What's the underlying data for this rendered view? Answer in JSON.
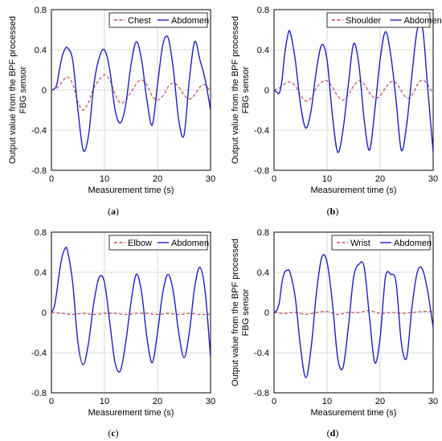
{
  "chart_data": [
    {
      "panel_label": "(a)",
      "type": "line",
      "xlabel": "Measurement time (s)",
      "ylabel_line1": "Output value from the BPF processed",
      "ylabel_line2": "FBG sensor",
      "xlim": [
        0,
        30
      ],
      "ylim": [
        -0.8,
        0.8
      ],
      "xticks": [
        "0",
        "10",
        "20",
        "30"
      ],
      "yticks": [
        "0.8",
        "0.4",
        "0",
        "-0.4",
        "-0.8"
      ],
      "legend_position": "top-right",
      "series": [
        {
          "name": "Chest",
          "style": "dashed",
          "color": "#c0504d",
          "x": [
            0,
            1,
            2,
            3,
            4,
            5,
            6,
            7,
            8,
            9,
            10,
            11,
            12,
            13,
            14,
            15,
            16,
            17,
            18,
            19,
            20,
            21,
            22,
            23,
            24,
            25,
            26,
            27,
            28,
            29,
            30
          ],
          "y": [
            0,
            0.02,
            0.08,
            0.13,
            0.06,
            -0.12,
            -0.2,
            -0.12,
            0.02,
            0.1,
            0.15,
            0.1,
            -0.04,
            -0.13,
            -0.1,
            -0.02,
            0.06,
            0.1,
            0.05,
            -0.06,
            -0.1,
            -0.06,
            0.03,
            0.07,
            0.03,
            -0.05,
            -0.09,
            -0.05,
            0.03,
            0.05,
            -0.02
          ]
        },
        {
          "name": "Abdomen",
          "style": "solid",
          "color": "#1f1fbf",
          "x": [
            0,
            0.5,
            1,
            1.5,
            2,
            2.5,
            3,
            4,
            5,
            6,
            7,
            8,
            9,
            10,
            11,
            12,
            13,
            14,
            15,
            16,
            17,
            18,
            19,
            20,
            21,
            22,
            23,
            24,
            25,
            26,
            27,
            28,
            29,
            30
          ],
          "y": [
            0,
            0.01,
            0.05,
            0.2,
            0.33,
            0.4,
            0.42,
            0.3,
            -0.2,
            -0.6,
            -0.45,
            0.05,
            0.32,
            0.4,
            0.2,
            -0.2,
            -0.33,
            -0.15,
            0.25,
            0.48,
            0.3,
            -0.1,
            -0.35,
            0.05,
            0.45,
            0.52,
            0.2,
            -0.3,
            -0.45,
            0.1,
            0.48,
            0.3,
            0.1,
            -0.2
          ]
        }
      ]
    },
    {
      "panel_label": "(b)",
      "type": "line",
      "xlabel": "Measurement time (s)",
      "ylabel_line1": "Output value from the BPF processed",
      "ylabel_line2": "FBG sensor",
      "xlim": [
        0,
        30
      ],
      "ylim": [
        -0.8,
        0.8
      ],
      "xticks": [
        "0",
        "10",
        "20",
        "30"
      ],
      "yticks": [
        "0.8",
        "0.4",
        "0",
        "-0.4",
        "-0.8"
      ],
      "legend_position": "top-right",
      "series": [
        {
          "name": "Shoulder",
          "style": "dashed",
          "color": "#c0504d",
          "x": [
            0,
            1,
            2,
            3,
            4,
            5,
            6,
            7,
            8,
            9,
            10,
            11,
            12,
            13,
            14,
            15,
            16,
            17,
            18,
            19,
            20,
            21,
            22,
            23,
            24,
            25,
            26,
            27,
            28,
            29,
            30
          ],
          "y": [
            0,
            0.02,
            0.06,
            0.08,
            0.04,
            -0.05,
            -0.11,
            -0.08,
            0.02,
            0.08,
            0.09,
            0.03,
            -0.06,
            -0.1,
            -0.05,
            0.04,
            0.09,
            0.06,
            -0.03,
            -0.08,
            -0.06,
            0.02,
            0.08,
            0.07,
            -0.01,
            -0.08,
            -0.05,
            0.05,
            0.1,
            0.05,
            -0.04
          ]
        },
        {
          "name": "Abdomen",
          "style": "solid",
          "color": "#1f1fbf",
          "x": [
            0,
            0.5,
            1,
            1.5,
            2,
            2.5,
            3,
            4,
            5,
            6,
            7,
            8,
            9,
            10,
            11,
            12,
            13,
            14,
            15,
            16,
            17,
            18,
            19,
            20,
            21,
            22,
            23,
            24,
            25,
            26,
            27,
            28,
            29,
            30
          ],
          "y": [
            0,
            -0.02,
            -0.03,
            0.1,
            0.35,
            0.52,
            0.58,
            0.3,
            -0.15,
            -0.38,
            -0.2,
            0.2,
            0.45,
            0.3,
            -0.25,
            -0.62,
            -0.4,
            0.05,
            0.46,
            0.25,
            -0.3,
            -0.6,
            -0.2,
            0.3,
            0.58,
            0.35,
            -0.1,
            -0.6,
            -0.35,
            0.15,
            0.6,
            0.62,
            0.0,
            -0.62
          ]
        }
      ]
    },
    {
      "panel_label": "(c)",
      "type": "line",
      "xlabel": "Measurement time (s)",
      "ylabel_line1": "",
      "ylabel_line2": "",
      "xlim": [
        0,
        30
      ],
      "ylim": [
        -0.8,
        0.8
      ],
      "xticks": [
        "0",
        "10",
        "20",
        "30"
      ],
      "yticks": [
        "0.8",
        "0.4",
        "0",
        "-0.4",
        "-0.8"
      ],
      "legend_position": "top-right",
      "series": [
        {
          "name": "Elbow",
          "style": "dashed",
          "color": "#c0504d",
          "x": [
            0,
            2,
            4,
            6,
            8,
            10,
            12,
            14,
            16,
            18,
            20,
            22,
            24,
            26,
            28,
            30
          ],
          "y": [
            0,
            -0.01,
            -0.02,
            -0.01,
            -0.02,
            -0.01,
            -0.01,
            -0.02,
            -0.01,
            -0.01,
            -0.02,
            -0.01,
            -0.02,
            -0.01,
            -0.02,
            -0.02
          ]
        },
        {
          "name": "Abdomen",
          "style": "solid",
          "color": "#1f1fbf",
          "x": [
            0,
            0.5,
            1,
            1.5,
            2,
            2.5,
            3,
            4,
            5,
            6,
            7,
            8,
            9,
            10,
            11,
            12,
            13,
            14,
            15,
            16,
            17,
            18,
            19,
            20,
            21,
            22,
            23,
            24,
            25,
            26,
            27,
            28,
            29,
            30
          ],
          "y": [
            0,
            0.05,
            0.2,
            0.4,
            0.55,
            0.63,
            0.62,
            0.3,
            -0.3,
            -0.52,
            -0.3,
            0.1,
            0.35,
            0.3,
            -0.1,
            -0.5,
            -0.58,
            -0.3,
            0.1,
            0.38,
            0.2,
            -0.25,
            -0.5,
            -0.2,
            0.2,
            0.38,
            0.2,
            -0.2,
            -0.45,
            -0.2,
            0.25,
            0.45,
            0.2,
            -0.45
          ]
        }
      ]
    },
    {
      "panel_label": "(d)",
      "type": "line",
      "xlabel": "Measurement time (s)",
      "ylabel_line1": "Output value from the BPF processed",
      "ylabel_line2": "FBG sensor",
      "xlim": [
        0,
        30
      ],
      "ylim": [
        -0.8,
        0.8
      ],
      "xticks": [
        "0",
        "10",
        "20",
        "30"
      ],
      "yticks": [
        "0.8",
        "0.4",
        "0",
        "-0.4",
        "-0.8"
      ],
      "legend_position": "top-right",
      "series": [
        {
          "name": "Wrist",
          "style": "dashed",
          "color": "#c0504d",
          "x": [
            0,
            2,
            4,
            6,
            8,
            10,
            12,
            14,
            16,
            18,
            20,
            22,
            24,
            26,
            28,
            30
          ],
          "y": [
            0,
            -0.01,
            0.0,
            -0.02,
            0.0,
            0.01,
            -0.02,
            0.0,
            0.0,
            0.02,
            -0.01,
            0.0,
            -0.01,
            0.0,
            0.01,
            0.01
          ]
        },
        {
          "name": "Abdomen",
          "style": "solid",
          "color": "#1f1fbf",
          "x": [
            0,
            0.5,
            1,
            1.5,
            2,
            2.5,
            3,
            4,
            5,
            6,
            7,
            8,
            9,
            10,
            11,
            12,
            13,
            14,
            15,
            16,
            17,
            18,
            19,
            20,
            21,
            22,
            23,
            24,
            25,
            26,
            27,
            28,
            29,
            30
          ],
          "y": [
            0,
            0.02,
            0.1,
            0.3,
            0.4,
            0.42,
            0.4,
            0.15,
            -0.35,
            -0.65,
            -0.35,
            0.2,
            0.55,
            0.5,
            0.1,
            -0.45,
            -0.55,
            -0.15,
            0.35,
            0.48,
            0.45,
            -0.05,
            -0.5,
            -0.25,
            0.35,
            0.38,
            0.3,
            -0.3,
            -0.45,
            0.05,
            0.4,
            0.43,
            0.2,
            -0.15
          ]
        }
      ]
    }
  ]
}
